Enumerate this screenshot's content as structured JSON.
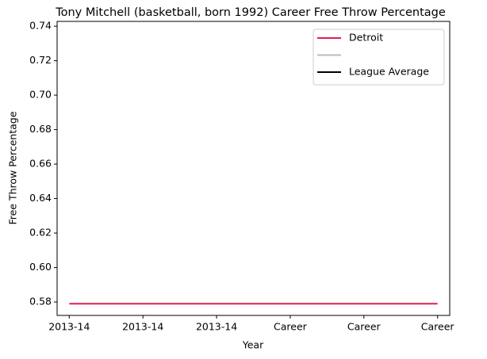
{
  "chart_data": {
    "type": "line",
    "title": "Tony Mitchell (basketball, born 1992) Career Free Throw Percentage",
    "x_label": "Year",
    "y_label": "Free Throw Percentage",
    "categories": [
      "2013-14",
      "2013-14",
      "2013-14",
      "Career",
      "Career",
      "Career"
    ],
    "series": [
      {
        "name": "Detroit",
        "color": "#e31c4f",
        "values": [
          0.579,
          0.579,
          0.579,
          0.579,
          0.579,
          0.579
        ]
      },
      {
        "color": "#bbbbbb",
        "values": [
          null,
          null,
          null,
          null,
          null,
          null
        ]
      },
      {
        "name": "League Average",
        "color": "#000000",
        "values": [
          null,
          null,
          null,
          null,
          null,
          null
        ]
      }
    ],
    "ylim": [
      0.5722,
      0.7428
    ],
    "yticks": [
      0.58,
      {
        "value": 0.6,
        "label": "0.60"
      },
      0.62,
      0.64,
      0.66,
      0.68,
      {
        "value": 0.7,
        "label": "0.70"
      },
      0.72,
      0.74
    ],
    "legend": "upper right",
    "grid": false
  }
}
